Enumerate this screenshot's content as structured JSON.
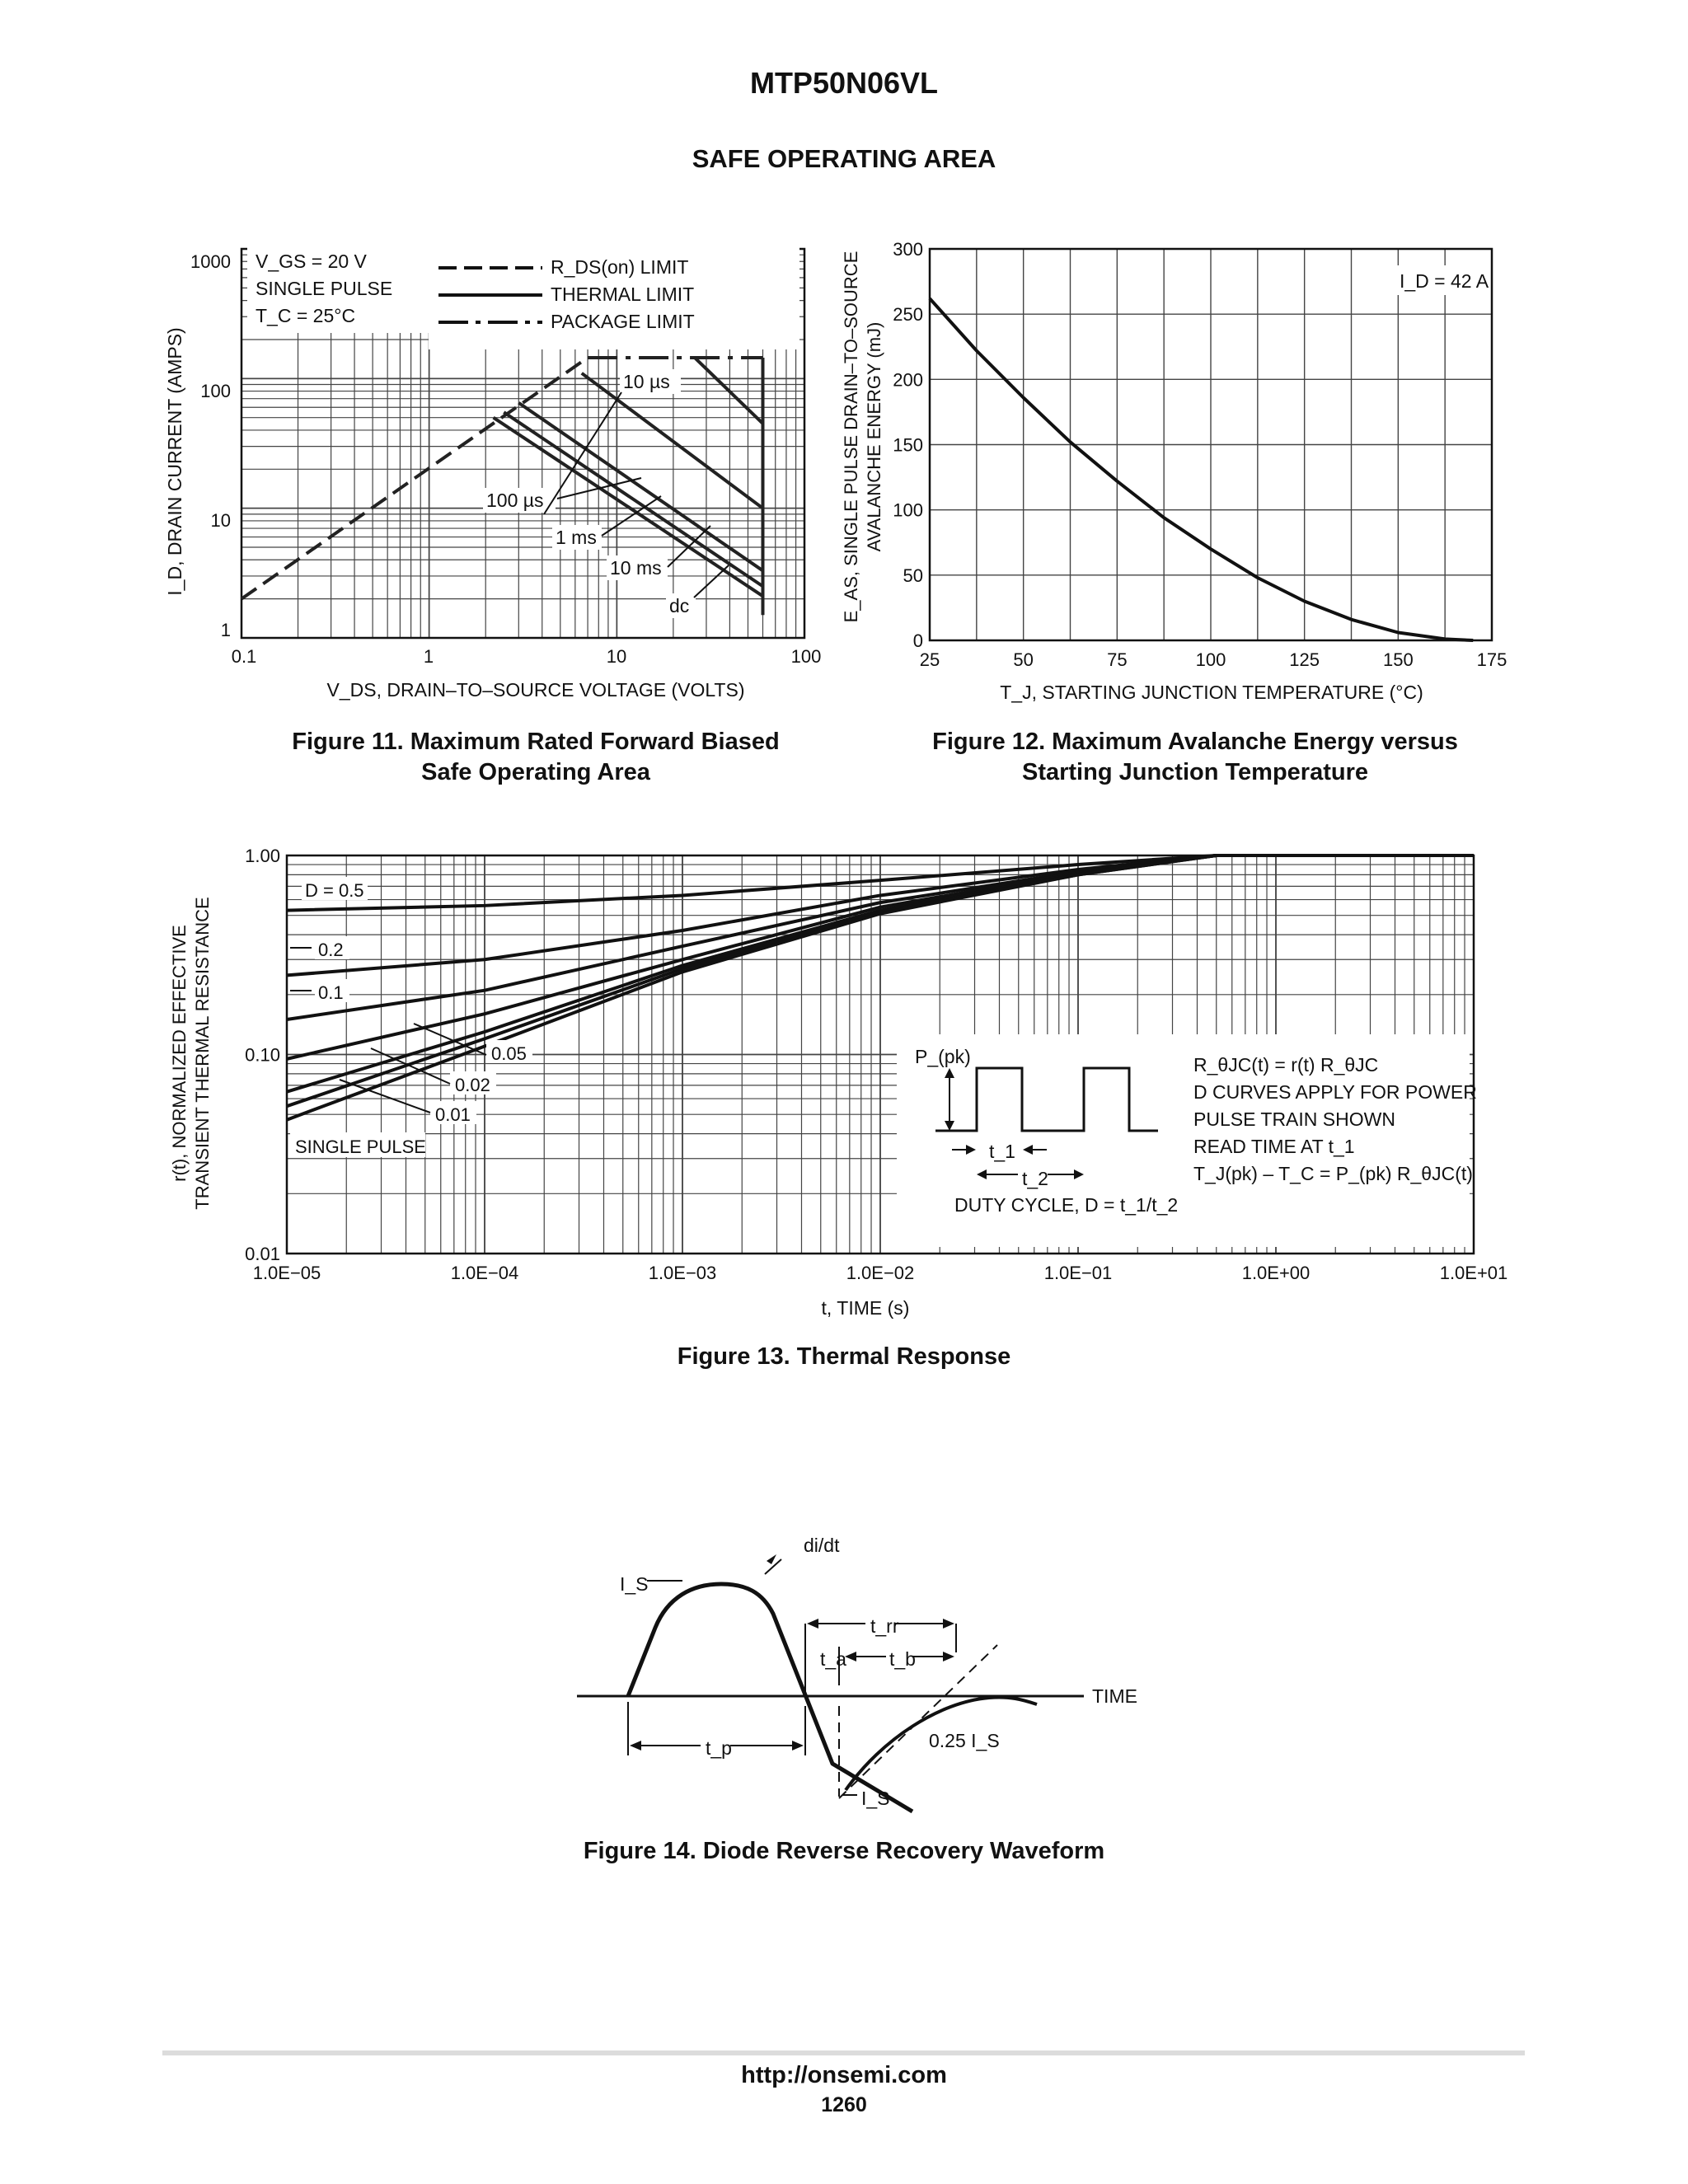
{
  "header": {
    "part_number": "MTP50N06VL",
    "section_title": "SAFE OPERATING AREA"
  },
  "footer": {
    "url": "http://onsemi.com",
    "page_number": "1260"
  },
  "colors": {
    "ink": "#111111",
    "grid": "#555555",
    "rule": "#dcdcdc"
  },
  "chart_data": [
    {
      "id": "fig11",
      "type": "line",
      "caption_line1": "Figure 11. Maximum Rated Forward Biased",
      "caption_line2": "Safe Operating Area",
      "xlabel": "V_DS, DRAIN–TO–SOURCE VOLTAGE (VOLTS)",
      "ylabel": "I_D, DRAIN CURRENT (AMPS)",
      "x_scale": "log",
      "y_scale": "log",
      "xlim": [
        0.1,
        100
      ],
      "ylim": [
        1,
        1000
      ],
      "x_ticks": [
        "0.1",
        "1",
        "10",
        "100"
      ],
      "y_ticks": [
        "1",
        "10",
        "100",
        "1000"
      ],
      "conditions": [
        "V_GS = 20 V",
        "SINGLE PULSE",
        "T_C = 25°C"
      ],
      "legend": [
        "R_DS(on) LIMIT",
        "THERMAL LIMIT",
        "PACKAGE LIMIT"
      ],
      "annotations": [
        "10 µs",
        "100 µs",
        "1 ms",
        "10 ms",
        "dc"
      ],
      "series": [
        {
          "name": "R_DS(on) LIMIT",
          "style": "dash",
          "x": [
            0.1,
            7
          ],
          "y": [
            2,
            145
          ]
        },
        {
          "name": "PACKAGE LIMIT",
          "style": "dashdot",
          "x": [
            7,
            60
          ],
          "y": [
            145,
            145
          ]
        },
        {
          "name": "10 µs",
          "style": "solid",
          "x": [
            26,
            60
          ],
          "y": [
            145,
            45
          ]
        },
        {
          "name": "100 µs",
          "style": "solid",
          "x": [
            6.5,
            60
          ],
          "y": [
            110,
            10
          ]
        },
        {
          "name": "1 ms",
          "style": "solid",
          "x": [
            3,
            60
          ],
          "y": [
            65,
            3.3
          ]
        },
        {
          "name": "10 ms",
          "style": "solid",
          "x": [
            2.5,
            60
          ],
          "y": [
            55,
            2.5
          ]
        },
        {
          "name": "dc",
          "style": "solid",
          "x": [
            2.2,
            60
          ],
          "y": [
            50,
            2.1
          ]
        },
        {
          "name": "voltage limit",
          "style": "solid",
          "x": [
            60,
            60
          ],
          "y": [
            1.5,
            145
          ]
        }
      ]
    },
    {
      "id": "fig12",
      "type": "line",
      "caption_line1": "Figure 12. Maximum Avalanche Energy versus",
      "caption_line2": "Starting Junction Temperature",
      "xlabel": "T_J, STARTING JUNCTION TEMPERATURE (°C)",
      "ylabel_line1": "E_AS, SINGLE PULSE DRAIN–TO–SOURCE",
      "ylabel_line2": "AVALANCHE ENERGY (mJ)",
      "xlim": [
        25,
        175
      ],
      "ylim": [
        0,
        300
      ],
      "x_ticks": [
        "25",
        "50",
        "75",
        "100",
        "125",
        "150",
        "175"
      ],
      "y_ticks": [
        "0",
        "50",
        "100",
        "150",
        "200",
        "250",
        "300"
      ],
      "annotation": "I_D = 42 A",
      "series": [
        {
          "x": [
            25,
            37.5,
            50,
            62.5,
            75,
            87.5,
            100,
            112.5,
            125,
            137.5,
            150,
            162.5,
            170
          ],
          "y": [
            262,
            222,
            186,
            152,
            122,
            94,
            70,
            48,
            30,
            16,
            6,
            1,
            0
          ]
        }
      ]
    },
    {
      "id": "fig13",
      "type": "line",
      "caption": "Figure 13. Thermal Response",
      "xlabel": "t, TIME (s)",
      "ylabel_line1": "r(t), NORMALIZED EFFECTIVE",
      "ylabel_line2": "TRANSIENT THERMAL RESISTANCE",
      "x_scale": "log",
      "y_scale": "log",
      "xlim": [
        1e-05,
        10
      ],
      "ylim": [
        0.01,
        1
      ],
      "x_ticks": [
        "1.0E−05",
        "1.0E−04",
        "1.0E−03",
        "1.0E−02",
        "1.0E−01",
        "1.0E+00",
        "1.0E+01"
      ],
      "y_ticks": [
        "0.01",
        "0.10",
        "1.00"
      ],
      "series": [
        {
          "name": "D = 0.5",
          "x": [
            1e-05,
            0.0001,
            0.001,
            0.01,
            0.1,
            0.5,
            10
          ],
          "y": [
            0.53,
            0.56,
            0.63,
            0.75,
            0.9,
            1,
            1
          ]
        },
        {
          "name": "0.2",
          "x": [
            1e-05,
            0.0001,
            0.001,
            0.01,
            0.1,
            0.5,
            10
          ],
          "y": [
            0.25,
            0.3,
            0.42,
            0.63,
            0.85,
            1,
            1
          ]
        },
        {
          "name": "0.1",
          "x": [
            1e-05,
            0.0001,
            0.001,
            0.01,
            0.1,
            0.5,
            10
          ],
          "y": [
            0.15,
            0.21,
            0.35,
            0.58,
            0.83,
            1,
            1
          ]
        },
        {
          "name": "0.05",
          "x": [
            1e-05,
            0.0001,
            0.001,
            0.01,
            0.1,
            0.5,
            10
          ],
          "y": [
            0.095,
            0.16,
            0.3,
            0.55,
            0.82,
            1,
            1
          ]
        },
        {
          "name": "0.02",
          "x": [
            1e-05,
            0.0001,
            0.001,
            0.01,
            0.1,
            0.5,
            10
          ],
          "y": [
            0.065,
            0.13,
            0.28,
            0.53,
            0.81,
            1,
            1
          ]
        },
        {
          "name": "0.01",
          "x": [
            1e-05,
            0.0001,
            0.001,
            0.01,
            0.1,
            0.5,
            10
          ],
          "y": [
            0.055,
            0.12,
            0.27,
            0.52,
            0.8,
            1,
            1
          ]
        },
        {
          "name": "SINGLE PULSE",
          "x": [
            1e-05,
            0.0001,
            0.001,
            0.01,
            0.1,
            0.5,
            10
          ],
          "y": [
            0.047,
            0.11,
            0.26,
            0.51,
            0.8,
            1,
            1
          ]
        }
      ],
      "inset": {
        "p_label": "P_(pk)",
        "t1_label": "t_1",
        "t2_label": "t_2",
        "duty_label": "DUTY CYCLE, D = t_1/t_2",
        "notes": [
          "R_θJC(t) = r(t) R_θJC",
          "D CURVES APPLY FOR POWER",
          "PULSE TRAIN SHOWN",
          "READ TIME AT t_1",
          "T_J(pk) – T_C = P_(pk) R_θJC(t)"
        ]
      }
    },
    {
      "id": "fig14",
      "type": "diagram",
      "caption": "Figure 14. Diode Reverse Recovery Waveform",
      "labels": {
        "is_top": "I_S",
        "didt": "di/dt",
        "trr": "t_rr",
        "ta": "t_a",
        "tb": "t_b",
        "time": "TIME",
        "tp": "t_p",
        "quarter_is": "0.25 I_S",
        "is_bottom": "I_S"
      }
    }
  ]
}
